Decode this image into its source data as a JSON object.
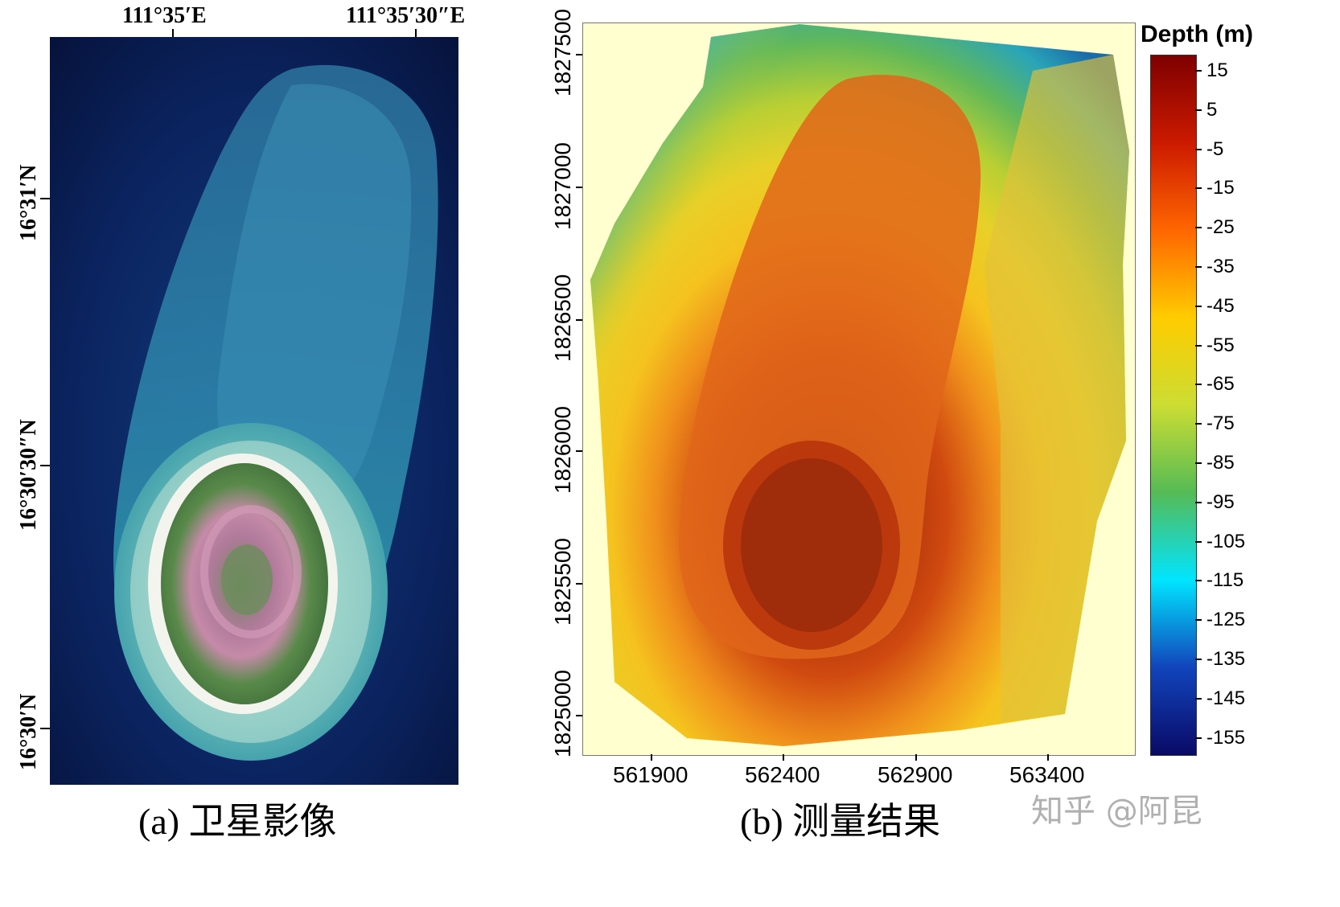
{
  "panel_a": {
    "lon_labels": [
      "111°35′E",
      "111°35′30″E"
    ],
    "lat_labels": [
      "16°31′N",
      "16°30′30″N",
      "16°30′N"
    ],
    "caption": "(a) 卫星影像"
  },
  "panel_b": {
    "x_ticks": [
      "561900",
      "562400",
      "562900",
      "563400"
    ],
    "y_ticks": [
      "1827500",
      "1827000",
      "1826500",
      "1826000",
      "1825500",
      "1825000"
    ],
    "caption": "(b) 测量结果",
    "colorbar": {
      "title": "Depth (m)",
      "ticks": [
        "15",
        "5",
        "-5",
        "-15",
        "-25",
        "-35",
        "-45",
        "-55",
        "-65",
        "-75",
        "-85",
        "-95",
        "-105",
        "-115",
        "-125",
        "-135",
        "-145",
        "-155"
      ],
      "colors": [
        "#7f0000",
        "#cc1a00",
        "#ff6600",
        "#ffcc00",
        "#ccdd33",
        "#55bb55",
        "#00e5ff",
        "#1144bb",
        "#0a0a66"
      ]
    }
  },
  "watermark": "知乎 @阿昆"
}
